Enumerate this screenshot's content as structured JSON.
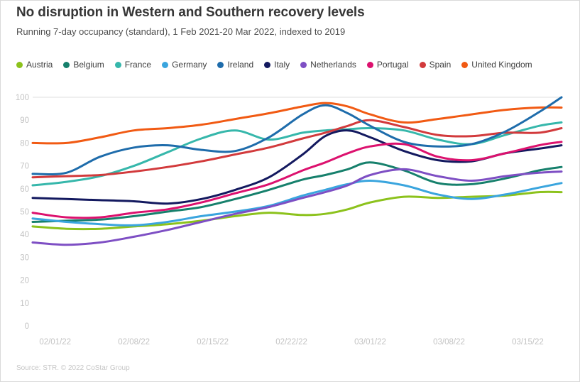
{
  "header": {
    "title": "No disruption in Western and Southern recovery levels",
    "subtitle": "Running 7-day occupancy (standard), 1 Feb 2021-20 Mar 2022, indexed to 2019"
  },
  "footer": {
    "source": "Source: STR. © 2022 CoStar Group"
  },
  "chart_data": {
    "type": "line",
    "title": "No disruption in Western and Southern recovery levels",
    "subtitle": "Running 7-day occupancy (standard), 1 Feb 2021-20 Mar 2022, indexed to 2019",
    "xlabel": "",
    "ylabel": "",
    "ylim": [
      0,
      100
    ],
    "y_ticks": [
      0,
      10,
      20,
      30,
      40,
      50,
      60,
      70,
      80,
      90,
      100
    ],
    "grid": "top-gridline-only",
    "legend_position": "top",
    "x_domain_days": [
      0,
      47
    ],
    "x_days": [
      0,
      3,
      6,
      9,
      12,
      15,
      18,
      21,
      24,
      26,
      28,
      30,
      33,
      36,
      39,
      42,
      45,
      47
    ],
    "x_tick_labels": [
      {
        "label": "02/01/22",
        "day": 2
      },
      {
        "label": "02/08/22",
        "day": 9
      },
      {
        "label": "02/15/22",
        "day": 16
      },
      {
        "label": "02/22/22",
        "day": 23
      },
      {
        "label": "03/01/22",
        "day": 30
      },
      {
        "label": "03/08/22",
        "day": 37
      },
      {
        "label": "03/15/22",
        "day": 44
      }
    ],
    "series": [
      {
        "name": "Austria",
        "color": "#8cc21c",
        "values": [
          43.5,
          42.5,
          42.5,
          43.5,
          44.5,
          46,
          48,
          49.5,
          48.5,
          49,
          51,
          54,
          56.5,
          56,
          56.5,
          57,
          58.5,
          58.5
        ]
      },
      {
        "name": "Belgium",
        "color": "#16806c",
        "values": [
          45.5,
          46,
          46.5,
          48,
          50,
          52,
          55.5,
          59.5,
          64,
          66,
          68.5,
          71.5,
          68,
          62.5,
          62,
          64.5,
          68,
          69.5
        ]
      },
      {
        "name": "France",
        "color": "#36b7ab",
        "values": [
          61.5,
          63,
          65.5,
          70,
          76,
          82,
          85.5,
          81.5,
          84.5,
          85.5,
          86,
          86.5,
          85.5,
          81.5,
          79.5,
          83.5,
          87.5,
          89
        ]
      },
      {
        "name": "Germany",
        "color": "#3aa5de",
        "values": [
          47,
          45.5,
          44.5,
          44,
          45.5,
          48,
          50,
          52.5,
          57,
          59.5,
          62,
          63.5,
          61.5,
          57.5,
          55.5,
          57.5,
          60.5,
          62.5
        ]
      },
      {
        "name": "Ireland",
        "color": "#1e6cab",
        "values": [
          66.5,
          67,
          74,
          78,
          79,
          77,
          76.5,
          82.5,
          92.5,
          96.5,
          93,
          87.5,
          80.5,
          78.5,
          79.5,
          85,
          93.5,
          100
        ]
      },
      {
        "name": "Italy",
        "color": "#13195f",
        "values": [
          56,
          55.5,
          55,
          54.5,
          53.5,
          55.5,
          59.5,
          65,
          75,
          83,
          85.5,
          82.5,
          76.5,
          72.5,
          72,
          75.5,
          77.5,
          79
        ]
      },
      {
        "name": "Netherlands",
        "color": "#7e4fc4",
        "values": [
          36.5,
          35.5,
          36.5,
          39,
          42,
          45.5,
          49,
          52,
          56,
          58.5,
          61.5,
          66,
          68.5,
          65.5,
          63.5,
          65.5,
          67,
          67.5
        ]
      },
      {
        "name": "Portugal",
        "color": "#dc116e",
        "values": [
          49.5,
          47.5,
          47.5,
          49.5,
          51,
          54,
          58,
          62,
          68,
          71.5,
          75.5,
          78.5,
          79.5,
          74,
          72.5,
          75.5,
          79,
          80.5
        ]
      },
      {
        "name": "Spain",
        "color": "#d23a3c",
        "values": [
          65,
          65.5,
          66,
          67.5,
          69.5,
          72,
          75,
          78,
          82,
          84.5,
          87.5,
          90,
          87,
          83.5,
          83,
          84.5,
          84.5,
          86.5
        ]
      },
      {
        "name": "United Kingdom",
        "color": "#f15a13",
        "values": [
          80,
          80,
          82.5,
          85.5,
          86.5,
          88,
          90.5,
          93,
          96,
          97.5,
          96,
          92.5,
          89,
          90.5,
          92.5,
          94.5,
          95.5,
          95.5
        ]
      }
    ]
  }
}
